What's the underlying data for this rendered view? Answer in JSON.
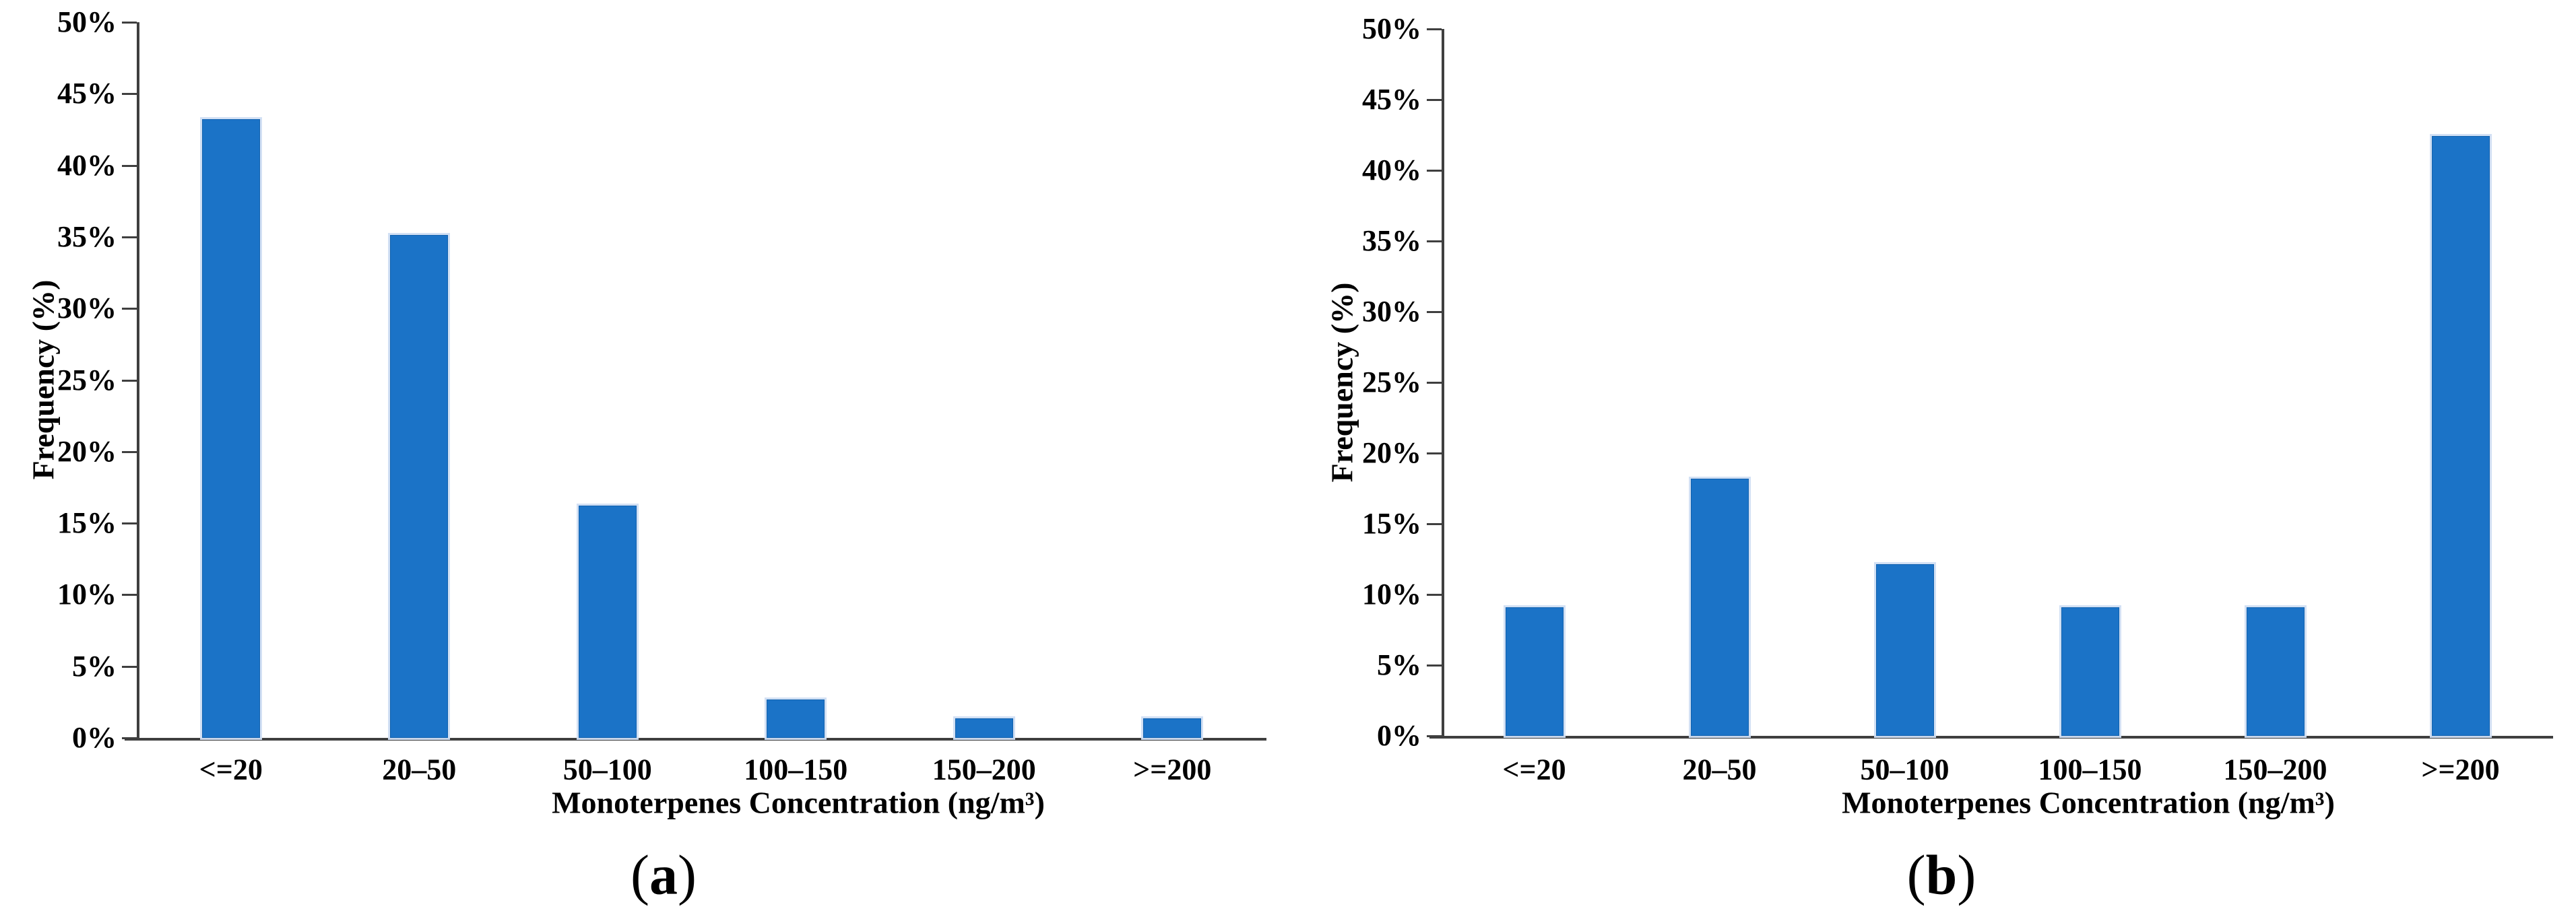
{
  "figure": {
    "background": "#ffffff",
    "axis_color": "#3f3f3f",
    "bar_color": "#1b73c7"
  },
  "chart_data": [
    {
      "id": "a",
      "type": "bar",
      "xlabel": "Monoterpenes Concentration (ng/m³)",
      "ylabel": "Frequency (%)",
      "categories": [
        "<=20",
        "20–50",
        "50–100",
        "100–150",
        "150–200",
        ">=200"
      ],
      "values": [
        43.24,
        35.14,
        16.22,
        2.7,
        1.35,
        1.35
      ],
      "ylim": [
        0,
        50
      ],
      "ytick_step": 5,
      "ytick_labels": [
        "0%",
        "5%",
        "10%",
        "15%",
        "20%",
        "25%",
        "30%",
        "35%",
        "40%",
        "45%",
        "50%"
      ],
      "grid": false,
      "legend": "none",
      "bar_color": "#1b73c7",
      "caption": {
        "open": "(",
        "letter": "a",
        "close": ")"
      }
    },
    {
      "id": "b",
      "type": "bar",
      "xlabel": "Monoterpenes Concentration (ng/m³)",
      "ylabel": "Frequency (%)",
      "categories": [
        "<=20",
        "20–50",
        "50–100",
        "100–150",
        "150–200",
        ">=200"
      ],
      "values": [
        9.09,
        18.18,
        12.12,
        9.09,
        9.09,
        42.42
      ],
      "ylim": [
        0,
        50
      ],
      "ytick_step": 5,
      "ytick_labels": [
        "0%",
        "5%",
        "10%",
        "15%",
        "20%",
        "25%",
        "30%",
        "35%",
        "40%",
        "45%",
        "50%"
      ],
      "grid": false,
      "legend": "none",
      "bar_color": "#1b73c7",
      "caption": {
        "open": "(",
        "letter": "b",
        "close": ")"
      }
    }
  ]
}
